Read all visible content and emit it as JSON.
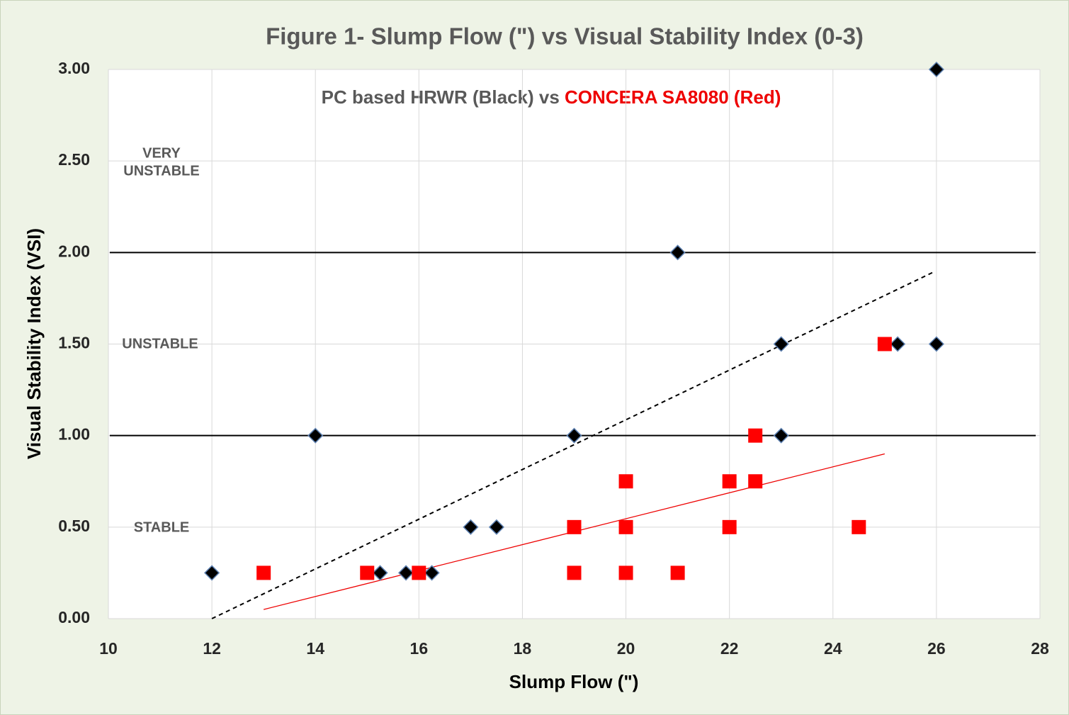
{
  "chart_data": {
    "type": "scatter",
    "title": "Figure 1-  Slump Flow (\") vs Visual Stability Index  (0-3)",
    "subtitle": [
      "PC based HRWR (Black) vs ",
      "CONCERA SA8080 (Red)"
    ],
    "subtitle_colors": [
      "#595959",
      "#ee0000"
    ],
    "x_label": "Slump Flow (\")",
    "y_label": "Visual Stability Index (VSI)",
    "annotations": [
      "VERY",
      "UNSTABLE",
      "UNSTABLE",
      "STABLE"
    ],
    "xlim": [
      10,
      28
    ],
    "ylim": [
      0,
      3
    ],
    "xticks": [
      10,
      12,
      14,
      16,
      18,
      20,
      22,
      24,
      26,
      28
    ],
    "yticks": [
      {
        "value": 0,
        "label": "0.00"
      },
      {
        "value": 0.5,
        "label": "0.50"
      },
      {
        "value": 1,
        "label": "1.00"
      },
      {
        "value": 1.5,
        "label": "1.50"
      },
      {
        "value": 2,
        "label": "2.00"
      },
      {
        "value": 2.5,
        "label": "2.50"
      },
      {
        "value": 3,
        "label": "3.00"
      }
    ],
    "grid": true,
    "reference_lines": [
      1,
      2
    ],
    "series": [
      {
        "color": "#000000",
        "marker": "diamond",
        "x": [
          12,
          14,
          15.25,
          15.75,
          16.25,
          17,
          17.5,
          19,
          21,
          23,
          23,
          25.25,
          26,
          26
        ],
        "values": [
          0.25,
          1,
          0.25,
          0.25,
          0.25,
          0.5,
          0.5,
          1,
          2,
          1.5,
          1,
          1.5,
          1.5,
          3
        ]
      },
      {
        "color": "#ff0000",
        "marker": "square",
        "x": [
          13,
          15,
          16,
          19,
          19,
          20,
          20,
          20,
          21,
          22,
          22,
          22.5,
          22.5,
          24.5,
          25
        ],
        "values": [
          0.25,
          0.25,
          0.25,
          0.5,
          0.25,
          0.75,
          0.5,
          0.25,
          0.25,
          0.75,
          0.5,
          1,
          0.75,
          0.5,
          1.5
        ]
      }
    ],
    "trendlines": [
      {
        "color": "#000000",
        "dashed": true,
        "x": [
          12,
          25.92
        ],
        "y": [
          0,
          1.89
        ]
      },
      {
        "color": "#ee0000",
        "dashed": false,
        "x": [
          13,
          25
        ],
        "y": [
          0.05,
          0.9
        ]
      }
    ]
  }
}
